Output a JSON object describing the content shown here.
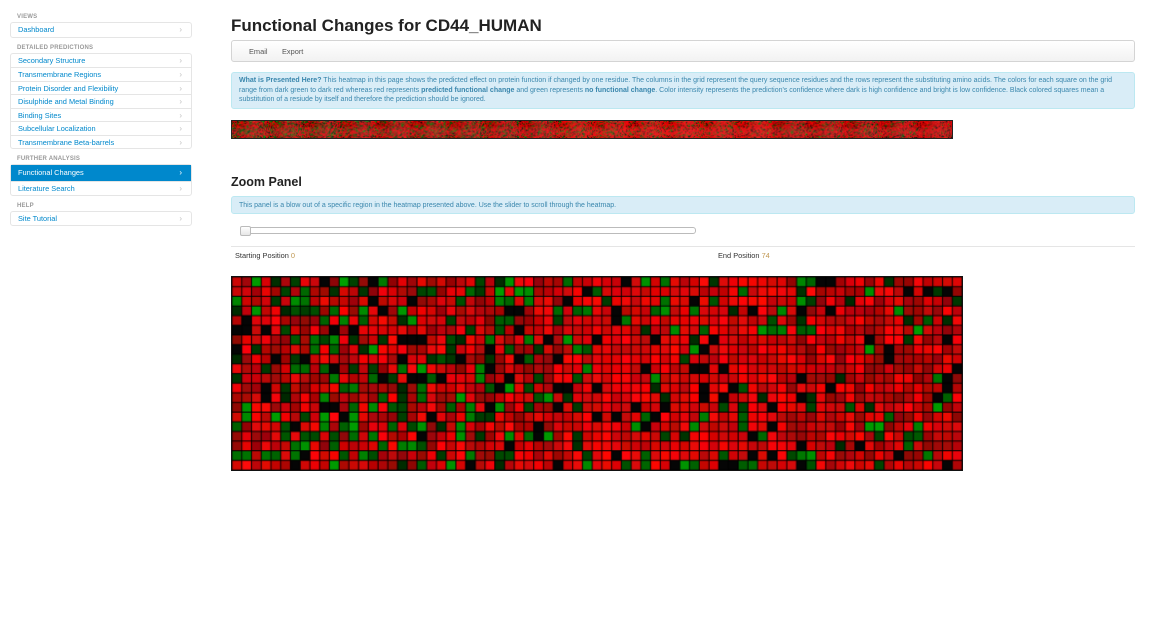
{
  "sidebar": {
    "groups": [
      {
        "header": "VIEWS",
        "items": [
          {
            "label": "Dashboard",
            "active": false
          }
        ]
      },
      {
        "header": "DETAILED PREDICTIONS",
        "items": [
          {
            "label": "Secondary Structure",
            "active": false
          },
          {
            "label": "Transmembrane Regions",
            "active": false
          },
          {
            "label": "Protein Disorder and Flexibility",
            "active": false
          },
          {
            "label": "Disulphide and Metal Binding",
            "active": false
          },
          {
            "label": "Binding Sites",
            "active": false
          },
          {
            "label": "Subcellular Localization",
            "active": false
          },
          {
            "label": "Transmembrane Beta-barrels",
            "active": false
          }
        ]
      },
      {
        "header": "FURTHER ANALYSIS",
        "items": [
          {
            "label": "Functional Changes",
            "active": true
          },
          {
            "label": "Literature Search",
            "active": false
          }
        ]
      },
      {
        "header": "HELP",
        "items": [
          {
            "label": "Site Tutorial",
            "active": false
          }
        ]
      }
    ],
    "chevron": "›"
  },
  "main": {
    "title": "Functional Changes for CD44_HUMAN",
    "toolbar": {
      "email_label": "Email",
      "export_label": "Export"
    },
    "info": {
      "heading": "What is Presented Here?",
      "text1": " This heatmap in this page shows the predicted effect on protein function if changed by one residue. The columns in the grid represent the query sequence residues and the rows represent the substituting amino acids. The colors for each square on the grid range from dark green to dark red whereas red represents ",
      "bold1": "predicted functional change",
      "text2": " and green represents ",
      "bold2": "no functional change",
      "text3": ". Color intensity represents the prediction's confidence where dark is high confidence and bright is low confidence. Black colored squares mean a substitution of a resiude by itself and therefore the prediction should be ignored."
    },
    "zoom": {
      "title": "Zoom Panel",
      "info": "This panel is a blow out of a specific region in the heatmap presented above. Use the slider to scroll through the heatmap.",
      "start_label": "Starting Position",
      "start_value": "0",
      "end_label": "End Position",
      "end_value": "74",
      "slider_value": 0
    }
  },
  "heatmap": {
    "palette": {
      "red": "#ff0000",
      "green": "#00a000",
      "self": "#000000"
    },
    "zoom_cols": 75,
    "rows": 20,
    "overview_cols": 742
  }
}
